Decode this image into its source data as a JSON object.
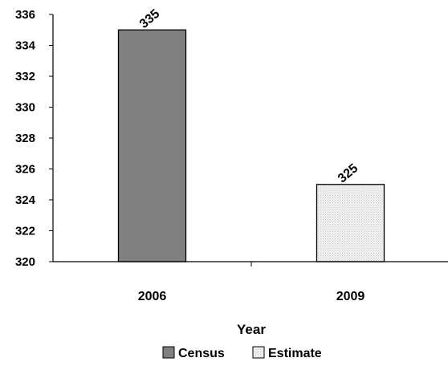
{
  "chart_data": {
    "type": "bar",
    "categories": [
      "2006",
      "2009"
    ],
    "series": [
      {
        "name": "Census",
        "values": [
          335,
          null
        ],
        "color": "#808080"
      },
      {
        "name": "Estimate",
        "values": [
          null,
          325
        ],
        "color": "#ececec"
      }
    ],
    "data_labels": [
      "335",
      "325"
    ],
    "xlabel": "Year",
    "ylabel": "",
    "ylim": [
      320,
      336
    ],
    "yticks": [
      "320",
      "322",
      "324",
      "326",
      "328",
      "330",
      "332",
      "334",
      "336"
    ],
    "grid": false,
    "legend_position": "bottom"
  }
}
